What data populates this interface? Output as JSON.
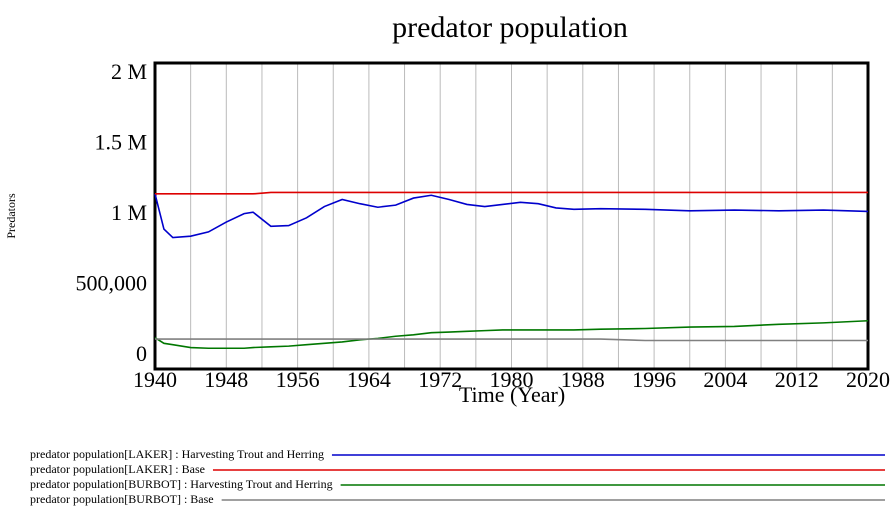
{
  "chart_data": {
    "type": "line",
    "title": "predator population",
    "x_label": "Time (Year)",
    "y_label": "Predators",
    "x": [
      1940,
      1941,
      1942,
      1944,
      1946,
      1948,
      1950,
      1951,
      1953,
      1955,
      1957,
      1959,
      1961,
      1963,
      1965,
      1967,
      1969,
      1971,
      1973,
      1975,
      1977,
      1979,
      1981,
      1983,
      1985,
      1987,
      1990,
      1995,
      2000,
      2005,
      2010,
      2015,
      2020
    ],
    "series": [
      {
        "name": "predator population[LAKER] : Harvesting Trout and Herring",
        "color": "#0000cc",
        "values": [
          1150000,
          900000,
          840000,
          850000,
          880000,
          950000,
          1010000,
          1020000,
          920000,
          925000,
          980000,
          1060000,
          1110000,
          1080000,
          1055000,
          1070000,
          1120000,
          1140000,
          1110000,
          1075000,
          1060000,
          1075000,
          1090000,
          1080000,
          1050000,
          1040000,
          1045000,
          1040000,
          1030000,
          1035000,
          1030000,
          1035000,
          1025000
        ]
      },
      {
        "name": "predator population[LAKER] : Base",
        "color": "#dd0000",
        "values": [
          1150000,
          1150000,
          1150000,
          1150000,
          1150000,
          1150000,
          1150000,
          1150000,
          1160000,
          1160000,
          1160000,
          1160000,
          1160000,
          1160000,
          1160000,
          1160000,
          1160000,
          1160000,
          1160000,
          1160000,
          1160000,
          1160000,
          1160000,
          1160000,
          1160000,
          1160000,
          1160000,
          1160000,
          1160000,
          1160000,
          1160000,
          1160000,
          1160000
        ]
      },
      {
        "name": "predator population[BURBOT] : Harvesting Trout and Herring",
        "color": "#007700",
        "values": [
          130000,
          90000,
          80000,
          60000,
          55000,
          55000,
          55000,
          60000,
          65000,
          70000,
          80000,
          90000,
          100000,
          115000,
          125000,
          140000,
          150000,
          165000,
          170000,
          175000,
          180000,
          185000,
          185000,
          185000,
          185000,
          185000,
          190000,
          195000,
          205000,
          210000,
          225000,
          235000,
          250000
        ]
      },
      {
        "name": "predator population[BURBOT] : Base",
        "color": "#808080",
        "values": [
          120000,
          120000,
          120000,
          120000,
          120000,
          120000,
          120000,
          120000,
          120000,
          120000,
          120000,
          120000,
          120000,
          120000,
          120000,
          120000,
          120000,
          120000,
          120000,
          120000,
          120000,
          120000,
          120000,
          120000,
          120000,
          120000,
          120000,
          110000,
          110000,
          110000,
          110000,
          110000,
          110000
        ]
      }
    ],
    "xlim": [
      1940,
      2020
    ],
    "xticks": [
      1940,
      1948,
      1956,
      1964,
      1972,
      1980,
      1988,
      1996,
      2004,
      2012,
      2020
    ],
    "xgrid": [
      1940,
      1944,
      1948,
      1952,
      1956,
      1960,
      1964,
      1968,
      1972,
      1976,
      1980,
      1984,
      1988,
      1992,
      1996,
      2000,
      2004,
      2008,
      2012,
      2016,
      2020
    ],
    "ylim": [
      0,
      2000000
    ],
    "yticks": [
      {
        "value": 0,
        "label": "0"
      },
      {
        "value": 500000,
        "label": "500,000"
      },
      {
        "value": 1000000,
        "label": "1 M"
      },
      {
        "value": 1500000,
        "label": "1.5 M"
      },
      {
        "value": 2000000,
        "label": "2 M"
      }
    ],
    "legend": "bottom"
  }
}
